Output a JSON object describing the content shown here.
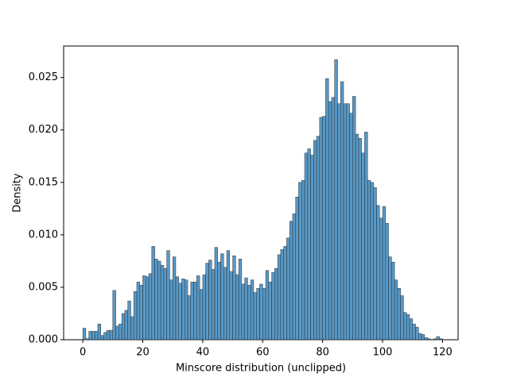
{
  "chart_data": {
    "type": "histogram",
    "xlabel": "Minscore distribution (unclipped)",
    "ylabel": "Density",
    "bins": [
      0,
      1,
      2,
      3,
      4,
      5,
      6,
      7,
      8,
      9,
      10,
      11,
      12,
      13,
      14,
      15,
      16,
      17,
      18,
      19,
      20,
      21,
      22,
      23,
      24,
      25,
      26,
      27,
      28,
      29,
      30,
      31,
      32,
      33,
      34,
      35,
      36,
      37,
      38,
      39,
      40,
      41,
      42,
      43,
      44,
      45,
      46,
      47,
      48,
      49,
      50,
      51,
      52,
      53,
      54,
      55,
      56,
      57,
      58,
      59,
      60,
      61,
      62,
      63,
      64,
      65,
      66,
      67,
      68,
      69,
      70,
      71,
      72,
      73,
      74,
      75,
      76,
      77,
      78,
      79,
      80,
      81,
      82,
      83,
      84,
      85,
      86,
      87,
      88,
      89,
      90,
      91,
      92,
      93,
      94,
      95,
      96,
      97,
      98,
      99,
      100,
      101,
      102,
      103,
      104,
      105,
      106,
      107,
      108,
      109,
      110,
      111,
      112,
      113,
      114,
      115,
      116,
      117,
      118,
      119,
      120
    ],
    "values": [
      0.0011,
      0.0001,
      0.0008,
      0.0008,
      0.0008,
      0.0015,
      0.0004,
      0.0007,
      0.0009,
      0.0009,
      0.0047,
      0.0013,
      0.0015,
      0.0025,
      0.0028,
      0.0037,
      0.0022,
      0.0046,
      0.0055,
      0.0052,
      0.0061,
      0.006,
      0.0063,
      0.0089,
      0.0077,
      0.0075,
      0.0071,
      0.0068,
      0.0085,
      0.0057,
      0.0079,
      0.006,
      0.0054,
      0.0058,
      0.0057,
      0.0042,
      0.0055,
      0.0055,
      0.0061,
      0.0048,
      0.0062,
      0.0073,
      0.0076,
      0.0067,
      0.0088,
      0.0074,
      0.0082,
      0.0069,
      0.0085,
      0.0065,
      0.008,
      0.0062,
      0.0077,
      0.0053,
      0.0059,
      0.0052,
      0.0057,
      0.0045,
      0.0049,
      0.0053,
      0.0049,
      0.0066,
      0.0055,
      0.0064,
      0.0068,
      0.0081,
      0.0086,
      0.0089,
      0.0097,
      0.0113,
      0.012,
      0.0136,
      0.015,
      0.0152,
      0.0178,
      0.0182,
      0.0176,
      0.019,
      0.0194,
      0.0212,
      0.0213,
      0.0249,
      0.0227,
      0.0231,
      0.0267,
      0.0225,
      0.0246,
      0.0225,
      0.0225,
      0.0216,
      0.0232,
      0.0196,
      0.0192,
      0.0178,
      0.0198,
      0.0152,
      0.015,
      0.0145,
      0.0128,
      0.0116,
      0.0127,
      0.0111,
      0.0079,
      0.0074,
      0.0057,
      0.0049,
      0.0042,
      0.0026,
      0.0024,
      0.002,
      0.0015,
      0.0012,
      0.0006,
      0.0005,
      0.0002,
      0.0001,
      0,
      0.0001,
      0.0003,
      0.0001
    ],
    "color": "#1f77b4",
    "xlim": [
      -6.4,
      125.2
    ],
    "xticks": [
      0,
      20,
      40,
      60,
      80,
      100,
      120
    ],
    "ylim": [
      0,
      0.028
    ],
    "yticks": [
      {
        "value": 0,
        "label": "0.000"
      },
      0.005,
      {
        "value": 0.01,
        "label": "0.010"
      },
      0.015,
      {
        "value": 0.02,
        "label": "0.020"
      },
      0.025
    ]
  }
}
